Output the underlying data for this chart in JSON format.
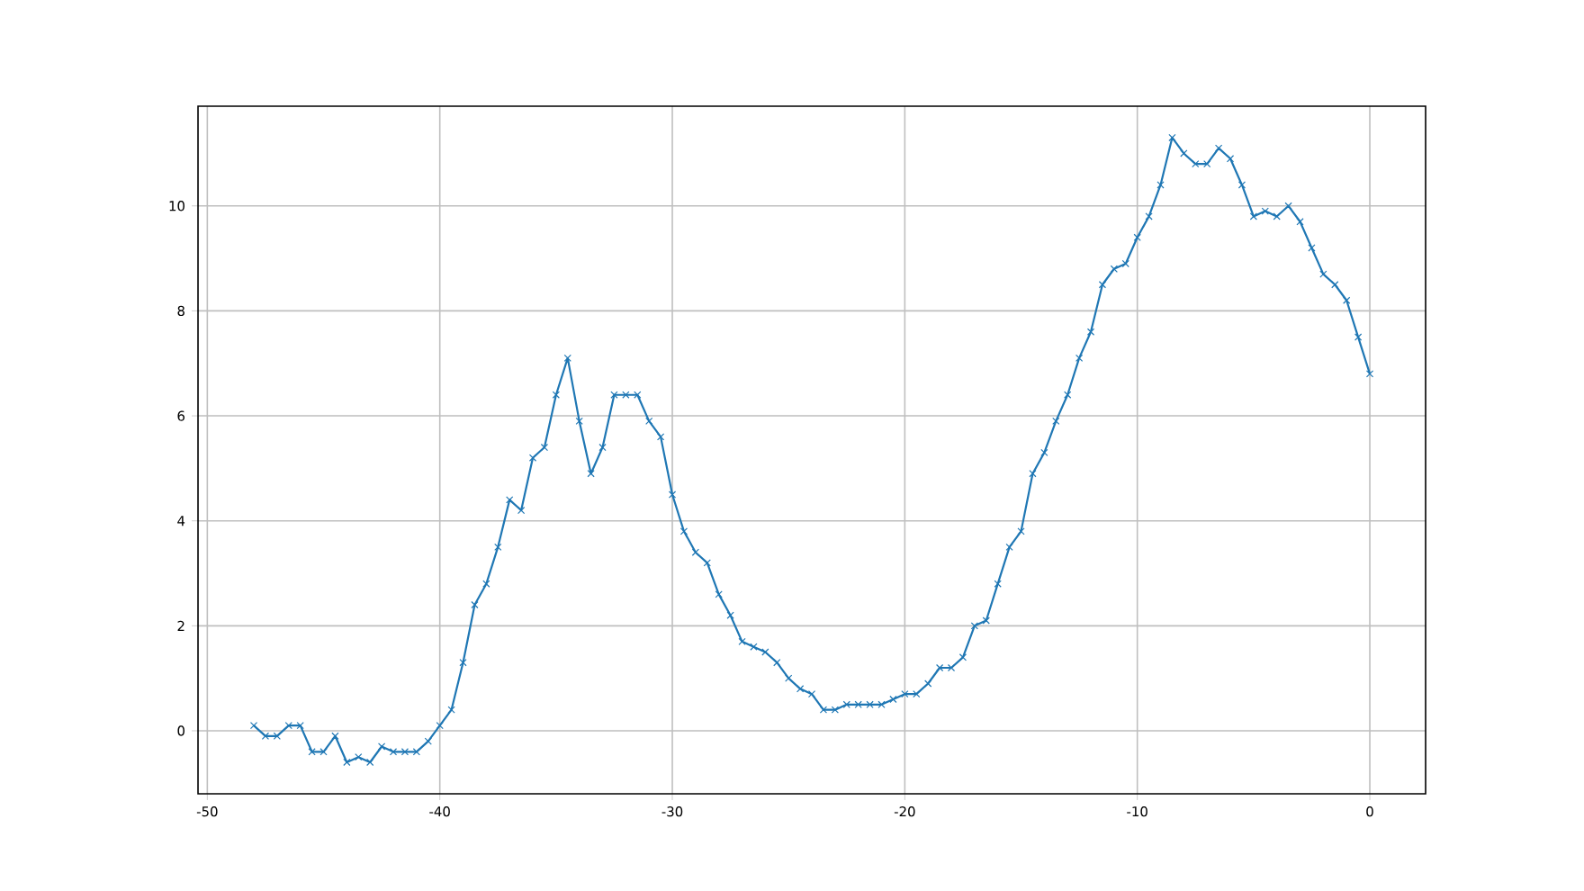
{
  "chart_data": {
    "type": "line",
    "color": "#1f77b4",
    "marker": "cross",
    "line_style": "solid",
    "grid": true,
    "x": [
      -48,
      -47.5,
      -47,
      -46.5,
      -46,
      -45.5,
      -45,
      -44.5,
      -44,
      -43.5,
      -43,
      -42.5,
      -42,
      -41.5,
      -41,
      -40.5,
      -40,
      -39.5,
      -39,
      -38.5,
      -38,
      -37.5,
      -37,
      -36.5,
      -36,
      -35.5,
      -35,
      -34.5,
      -34,
      -33.5,
      -33,
      -32.5,
      -32,
      -31.5,
      -31,
      -30.5,
      -30,
      -29.5,
      -29,
      -28.5,
      -28,
      -27.5,
      -27,
      -26.5,
      -26,
      -25.5,
      -25,
      -24.5,
      -24,
      -23.5,
      -23,
      -22.5,
      -22,
      -21.5,
      -21,
      -20.5,
      -20,
      -19.5,
      -19,
      -18.5,
      -18,
      -17.5,
      -17,
      -16.5,
      -16,
      -15.5,
      -15,
      -14.5,
      -14,
      -13.5,
      -13,
      -12.5,
      -12,
      -11.5,
      -11,
      -10.5,
      -10,
      -9.5,
      -9,
      -8.5,
      -8,
      -7.5,
      -7,
      -6.5,
      -6,
      -5.5,
      -5,
      -4.5,
      -4,
      -3.5,
      -3,
      -2.5,
      -2,
      -1.5,
      -1,
      -0.5,
      0
    ],
    "values": [
      0.1,
      -0.1,
      -0.1,
      0.1,
      0.1,
      -0.4,
      -0.4,
      -0.1,
      -0.6,
      -0.5,
      -0.6,
      -0.3,
      -0.4,
      -0.4,
      -0.4,
      -0.2,
      0.1,
      0.4,
      1.3,
      2.4,
      2.8,
      3.5,
      4.4,
      4.2,
      5.2,
      5.4,
      6.4,
      7.1,
      5.9,
      4.9,
      5.4,
      6.4,
      6.4,
      6.4,
      5.9,
      5.6,
      4.5,
      3.8,
      3.4,
      3.2,
      2.6,
      2.2,
      1.7,
      1.6,
      1.5,
      1.3,
      1.0,
      0.8,
      0.7,
      0.4,
      0.4,
      0.5,
      0.5,
      0.5,
      0.5,
      0.6,
      0.7,
      0.7,
      0.9,
      1.2,
      1.2,
      1.4,
      2.0,
      2.1,
      2.8,
      3.5,
      3.8,
      4.9,
      5.3,
      5.9,
      6.4,
      7.1,
      7.6,
      8.5,
      8.8,
      8.9,
      9.4,
      9.8,
      10.4,
      11.3,
      11.0,
      10.8,
      10.8,
      11.1,
      10.9,
      10.4,
      9.8,
      9.9,
      9.8,
      10.0,
      9.7,
      9.2,
      8.7,
      8.5,
      8.2,
      7.5,
      6.8
    ],
    "xlim": [
      -50.4,
      2.4
    ],
    "ylim": [
      -1.2,
      11.9
    ],
    "xticks": [
      -50,
      -40,
      -30,
      -20,
      -10,
      0
    ],
    "yticks": [
      0,
      2,
      4,
      6,
      8,
      10
    ]
  }
}
